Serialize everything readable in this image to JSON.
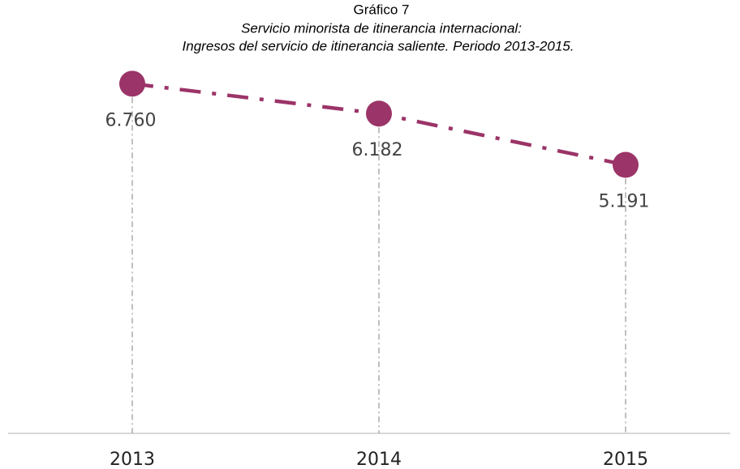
{
  "chart_data": {
    "type": "line",
    "title": "Gráfico 7",
    "subtitle": [
      "Servicio minorista de itinerancia internacional:",
      "Ingresos del servicio de itinerancia saliente. Periodo 2013-2015."
    ],
    "categories": [
      "2013",
      "2014",
      "2015"
    ],
    "series": [
      {
        "name": null,
        "color": "#9b3468",
        "values": [
          6760,
          6182,
          5191
        ],
        "value_labels": [
          "6.760",
          "6.182",
          "5.191"
        ]
      }
    ],
    "ylim": [
      0,
      7000
    ]
  }
}
